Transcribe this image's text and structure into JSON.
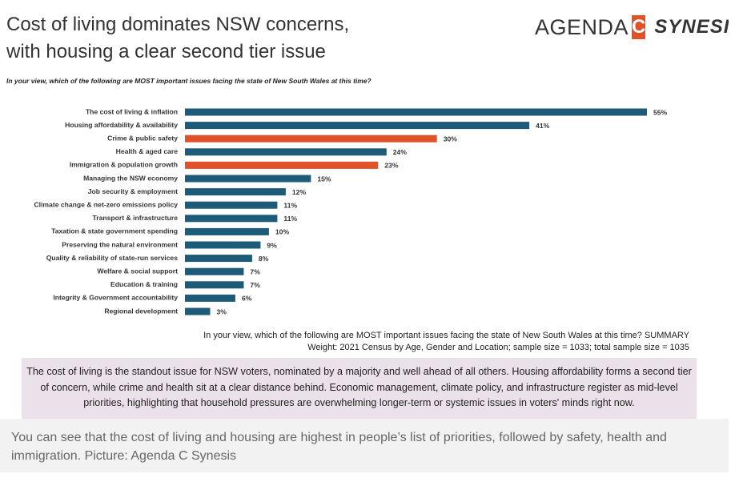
{
  "chart_data": {
    "type": "bar",
    "orientation": "horizontal",
    "title": "Cost of living dominates NSW concerns, with housing a clear second tier issue",
    "subtitle": "In your view, which of the following are MOST important issues facing the state of New South Wales at this time?",
    "logo": {
      "name": "AGENDA",
      "letter": "C",
      "partner": "SYNESI"
    },
    "categories": [
      "The cost of living & inflation",
      "Housing affordability & availability",
      "Crime & public safety",
      "Health & aged care",
      "Immigration & population growth",
      "Managing the NSW economy",
      "Job security & employment",
      "Climate change & net-zero emissions policy",
      "Transport & infrastructure",
      "Taxation & state government spending",
      "Preserving the natural environment",
      "Quality & reliability of state-run services",
      "Welfare & social support",
      "Education & training",
      "Integrity & Government accountability",
      "Regional development"
    ],
    "values": [
      55,
      41,
      30,
      24,
      23,
      15,
      12,
      11,
      11,
      10,
      9,
      8,
      7,
      7,
      6,
      3
    ],
    "value_labels": [
      "55%",
      "41%",
      "30%",
      "24%",
      "23%",
      "15%",
      "12%",
      "11%",
      "11%",
      "10%",
      "9%",
      "8%",
      "7%",
      "7%",
      "6%",
      "3%"
    ],
    "colors": [
      "#1d5b79",
      "#1d5b79",
      "#e2522a",
      "#1d5b79",
      "#e2522a",
      "#1d5b79",
      "#1d5b79",
      "#1d5b79",
      "#1d5b79",
      "#1d5b79",
      "#1d5b79",
      "#1d5b79",
      "#1d5b79",
      "#1d5b79",
      "#1d5b79",
      "#1d5b79"
    ],
    "footnotes": [
      "In your view, which of the following are MOST important issues facing the state of New South Wales at this time? SUMMARY",
      "Weight: 2021 Census by Age, Gender and Location; sample size = 1033; total sample size = 1035"
    ],
    "summary": "The cost of living is the standout issue for NSW voters, nominated by a majority and well ahead of all others. Housing affordability forms a second tier of concern, while crime and health sit at a clear distance behind. Economic management, climate policy, and infrastructure register as mid-level priorities, highlighting that household pressures are overwhelming longer-term or systemic issues in voters' minds right now."
  },
  "caption": "You can see that the cost of living and housing are highest in people’s list of priorities, followed by safety, health and immigration. Picture: Agenda C Synesis"
}
